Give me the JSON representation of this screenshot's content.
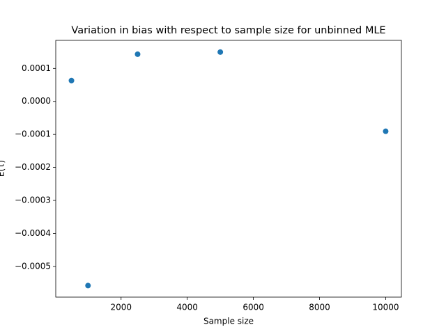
{
  "chart_data": {
    "type": "scatter",
    "title": "Variation in bias with respect to sample size for unbinned MLE",
    "xlabel": "Sample size",
    "ylabel": "E(τ)",
    "x": [
      500,
      1000,
      2500,
      5000,
      10000
    ],
    "values": [
      6.32e-05,
      -0.000558,
      0.000143,
      0.0001495,
      -9.05e-05
    ],
    "color": "#1f77b4",
    "xlim": [
      25,
      10475
    ],
    "xticks": [
      2000,
      4000,
      6000,
      8000,
      10000
    ],
    "ylim": [
      -0.000593,
      0.000185
    ],
    "yticks": [
      {
        "value": 0.0001,
        "label": "0.0001"
      },
      {
        "value": 0,
        "label": "0.0000"
      },
      {
        "value": -0.0001,
        "label": "−0.0001"
      },
      {
        "value": -0.0002,
        "label": "−0.0002"
      },
      {
        "value": -0.0003,
        "label": "−0.0003"
      },
      {
        "value": -0.0004,
        "label": "−0.0004"
      },
      {
        "value": -0.0005,
        "label": "−0.0005"
      }
    ]
  }
}
